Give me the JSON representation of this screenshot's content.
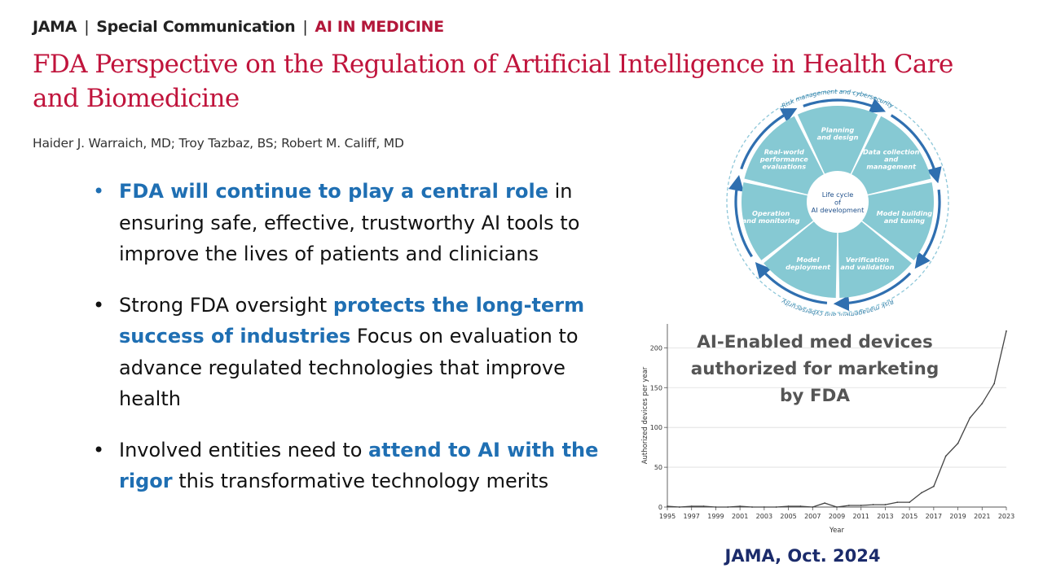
{
  "header": {
    "journal": "JAMA",
    "article_type": "Special Communication",
    "section": "AI IN MEDICINE",
    "separator": "|"
  },
  "title": "FDA Perspective on the Regulation of Artificial Intelligence in Health Care and Biomedicine",
  "authors": "Haider J. Warraich, MD; Troy Tazbaz, BS; Robert M. Califf, MD",
  "bullets": [
    {
      "pre": "",
      "highlight": "FDA will continue to play a central role",
      "post": " in ensuring safe, effective, trustworthy AI tools to improve the lives of patients and clinicians"
    },
    {
      "pre": "Strong FDA oversight ",
      "highlight": "protects the long-term success of industries",
      "post": " Focus on evaluation to advance regulated technologies that improve health"
    },
    {
      "pre": "Involved entities need to ",
      "highlight": "attend to AI with the rigor",
      "post": " this transformative technology merits"
    }
  ],
  "lifecycle": {
    "center": [
      "Life cycle",
      "of",
      "AI development"
    ],
    "segments": [
      [
        "Planning",
        "and design"
      ],
      [
        "Data collection",
        "and",
        "management"
      ],
      [
        "Model building",
        "and tuning"
      ],
      [
        "Verification",
        "and validation"
      ],
      [
        "Model",
        "deployment"
      ],
      [
        "Operation",
        "and monitoring"
      ],
      [
        "Real-world",
        "performance",
        "evaluations"
      ]
    ],
    "ring_label": "Risk management and cybersecurity",
    "colors": {
      "segment": "#86c9d3",
      "text": "#ffffff",
      "center_text": "#1f4f8a",
      "arrow": "#2f6fb0"
    }
  },
  "chart_data": {
    "type": "line",
    "title": "AI-Enabled med devices authorized for marketing by FDA",
    "xlabel": "Year",
    "ylabel": "Authorized devices per year",
    "xlim": [
      1995,
      2023
    ],
    "ylim": [
      0,
      230
    ],
    "xticks": [
      "1995",
      "1997",
      "1999",
      "2001",
      "2003",
      "2005",
      "2007",
      "2009",
      "2011",
      "2013",
      "2015",
      "2017",
      "2019",
      "2021",
      "2023"
    ],
    "yticks": [
      "0",
      "50",
      "100",
      "150",
      "200"
    ],
    "x": [
      1995,
      1996,
      1997,
      1998,
      1999,
      2000,
      2001,
      2002,
      2003,
      2004,
      2005,
      2006,
      2007,
      2008,
      2009,
      2010,
      2011,
      2012,
      2013,
      2014,
      2015,
      2016,
      2017,
      2018,
      2019,
      2020,
      2021,
      2022,
      2023
    ],
    "values": [
      1,
      0,
      1,
      1,
      0,
      0,
      1,
      0,
      0,
      0,
      1,
      1,
      0,
      5,
      0,
      2,
      2,
      3,
      3,
      6,
      6,
      18,
      26,
      64,
      80,
      112,
      130,
      155,
      221
    ],
    "grid": true,
    "color": "#444444"
  },
  "caption": "JAMA, Oct. 2024"
}
